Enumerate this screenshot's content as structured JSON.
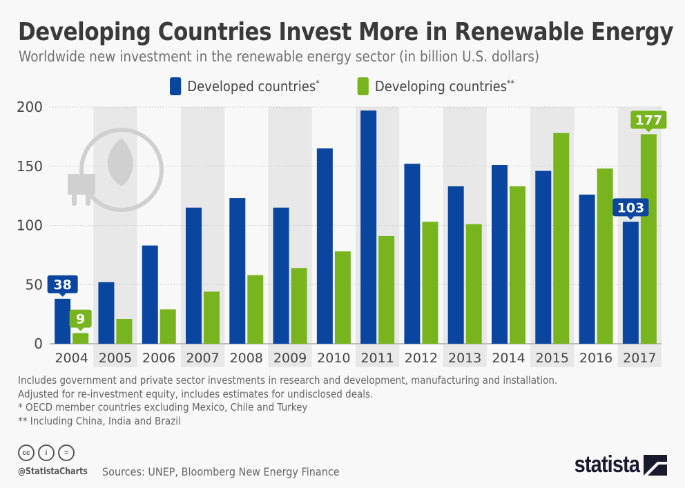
{
  "header": {
    "title": "Developing Countries Invest More in Renewable Energy",
    "subtitle": "Worldwide new investment in the renewable energy sector (in billion U.S. dollars)"
  },
  "legend": [
    {
      "label": "Developed countries",
      "marker": "*",
      "color": "#0a46a0"
    },
    {
      "label": "Developing countries",
      "marker": "**",
      "color": "#78b41e"
    }
  ],
  "chart_data": {
    "type": "bar",
    "title": "Developing Countries Invest More in Renewable Energy",
    "subtitle": "Worldwide new investment in the renewable energy sector (in billion U.S. dollars)",
    "xlabel": "",
    "ylabel": "",
    "ylim": [
      0,
      200
    ],
    "yticks": [
      0,
      50,
      100,
      150,
      200
    ],
    "grid": true,
    "legend_position": "top-center",
    "categories": [
      "2004",
      "2005",
      "2006",
      "2007",
      "2008",
      "2009",
      "2010",
      "2011",
      "2012",
      "2013",
      "2014",
      "2015",
      "2016",
      "2017"
    ],
    "series": [
      {
        "name": "Developed countries*",
        "color": "#0a46a0",
        "values": [
          38,
          52,
          83,
          115,
          123,
          115,
          165,
          197,
          152,
          133,
          151,
          146,
          126,
          103
        ]
      },
      {
        "name": "Developing countries**",
        "color": "#78b41e",
        "values": [
          9,
          21,
          29,
          44,
          58,
          64,
          78,
          91,
          103,
          101,
          133,
          178,
          148,
          177
        ]
      }
    ],
    "annotations": [
      {
        "series": 0,
        "category": "2004",
        "text": "38"
      },
      {
        "series": 1,
        "category": "2004",
        "text": "9"
      },
      {
        "series": 0,
        "category": "2017",
        "text": "103"
      },
      {
        "series": 1,
        "category": "2017",
        "text": "177"
      }
    ]
  },
  "notes": [
    "Includes government and private sector investments in research and development, manufacturing and installation.",
    "Adjusted for re-investment equity, includes estimates for undisclosed deals.",
    "*   OECD member countries excluding Mexico, Chile and Turkey",
    "** Including China, India and Brazil"
  ],
  "footer": {
    "license_icons": [
      "cc-icon",
      "by-icon",
      "nd-icon"
    ],
    "license_glyphs": [
      "cc",
      "i",
      "="
    ],
    "handle": "@StatistaCharts",
    "sources": "Sources: UNEP, Bloomberg New Energy Finance",
    "brand": "statista"
  }
}
